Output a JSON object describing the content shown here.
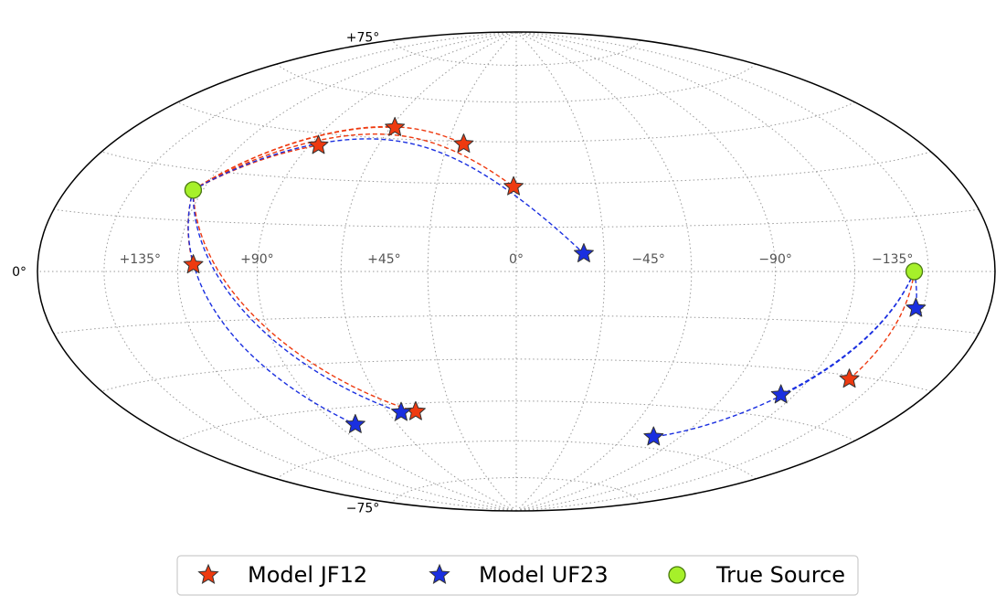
{
  "chart_data": {
    "type": "scatter",
    "projection": "hammer",
    "grid": true,
    "legend_placement": "bottom-center",
    "longitude_ticks": [
      {
        "lon": 135,
        "label": "+135°"
      },
      {
        "lon": 90,
        "label": "+90°"
      },
      {
        "lon": 45,
        "label": "+45°"
      },
      {
        "lon": 0,
        "label": "0°"
      },
      {
        "lon": -45,
        "label": "−45°"
      },
      {
        "lon": -90,
        "label": "−90°"
      },
      {
        "lon": -135,
        "label": "−135°"
      }
    ],
    "latitude_ticks": [
      {
        "lat": 75,
        "label": "+75°"
      },
      {
        "lat": 0,
        "label": "0°"
      },
      {
        "lat": -75,
        "label": "−75°"
      }
    ],
    "series": [
      {
        "name": "Model JF12",
        "color": "#ee3a10",
        "marker": "star",
        "points": [
          {
            "lon": 86,
            "lat": 41,
            "src": 0
          },
          {
            "lon": 58,
            "lat": 49,
            "src": 0
          },
          {
            "lon": 23,
            "lat": 44,
            "src": 0
          },
          {
            "lon": 1,
            "lat": 29,
            "src": 0
          },
          {
            "lon": 114,
            "lat": 2,
            "src": 0
          },
          {
            "lon": 47,
            "lat": -48,
            "src": 0
          },
          {
            "lon": -137,
            "lat": -31,
            "src": 1
          }
        ]
      },
      {
        "name": "Model UF23",
        "color": "#1a2fe0",
        "marker": "star",
        "points": [
          {
            "lon": -23,
            "lat": 6,
            "src": 0
          },
          {
            "lon": 81,
            "lat": -51,
            "src": 0
          },
          {
            "lon": 54,
            "lat": -48,
            "src": 0
          },
          {
            "lon": -76,
            "lat": -56,
            "src": 1
          },
          {
            "lon": -114,
            "lat": -38,
            "src": 1
          },
          {
            "lon": -147,
            "lat": -10,
            "src": 1
          }
        ]
      },
      {
        "name": "True Source",
        "color": "#a6f02a",
        "marker": "circle",
        "points": [
          {
            "lon": 124,
            "lat": 24
          },
          {
            "lon": -144,
            "lat": 0
          }
        ]
      }
    ]
  }
}
